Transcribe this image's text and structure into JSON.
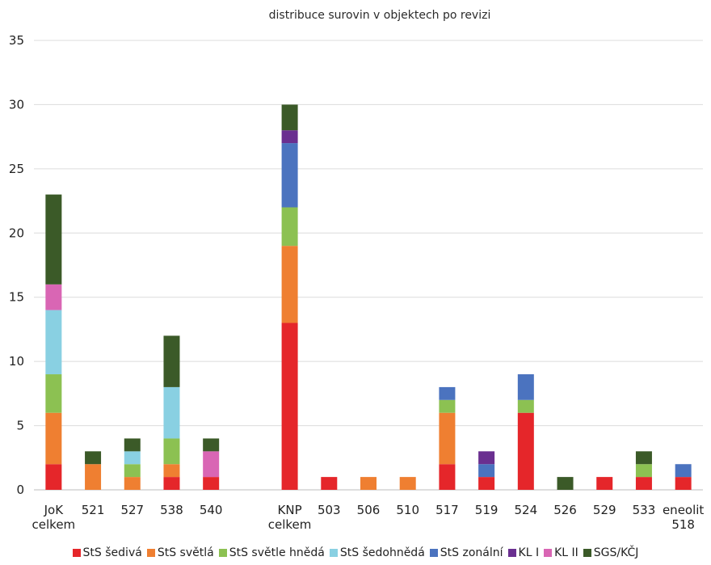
{
  "chart_data": {
    "type": "bar",
    "stacked": true,
    "title": "distribuce surovin v objektech po revizi",
    "xlabel": "",
    "ylabel": "",
    "ylim": [
      0,
      35
    ],
    "yticks": [
      0,
      5,
      10,
      15,
      20,
      25,
      30,
      35
    ],
    "grid": true,
    "legend_position": "bottom",
    "categories": [
      [
        "JoK",
        "celkem"
      ],
      [
        "521"
      ],
      [
        "527"
      ],
      [
        "538"
      ],
      [
        "540"
      ],
      [
        ""
      ],
      [
        "KNP",
        "celkem"
      ],
      [
        "503"
      ],
      [
        "506"
      ],
      [
        "510"
      ],
      [
        "517"
      ],
      [
        "519"
      ],
      [
        "524"
      ],
      [
        "526"
      ],
      [
        "529"
      ],
      [
        "533"
      ],
      [
        "eneolit",
        "518"
      ]
    ],
    "series": [
      {
        "name": "StS šedivá",
        "color": "#e5262a",
        "values": [
          2,
          0,
          0,
          1,
          1,
          0,
          13,
          1,
          0,
          0,
          2,
          1,
          6,
          0,
          1,
          1,
          1
        ]
      },
      {
        "name": "StS světlá",
        "color": "#ef7f31",
        "values": [
          4,
          2,
          1,
          1,
          0,
          0,
          6,
          0,
          1,
          1,
          4,
          0,
          0,
          0,
          0,
          0,
          0
        ]
      },
      {
        "name": "StS světle hnědá",
        "color": "#8cc152",
        "values": [
          3,
          0,
          1,
          2,
          0,
          0,
          3,
          0,
          0,
          0,
          1,
          0,
          1,
          0,
          0,
          1,
          0
        ]
      },
      {
        "name": "StS šedohnědá",
        "color": "#89d0e2",
        "values": [
          5,
          0,
          1,
          4,
          0,
          0,
          0,
          0,
          0,
          0,
          0,
          0,
          0,
          0,
          0,
          0,
          0
        ]
      },
      {
        "name": "StS zonální",
        "color": "#4b73bf",
        "values": [
          0,
          0,
          0,
          0,
          0,
          0,
          5,
          0,
          0,
          0,
          1,
          1,
          2,
          0,
          0,
          0,
          1
        ]
      },
      {
        "name": "KL I",
        "color": "#6a2f90",
        "values": [
          0,
          0,
          0,
          0,
          0,
          0,
          1,
          0,
          0,
          0,
          0,
          1,
          0,
          0,
          0,
          0,
          0
        ]
      },
      {
        "name": "KL II",
        "color": "#d966b4",
        "values": [
          2,
          0,
          0,
          0,
          2,
          0,
          0,
          0,
          0,
          0,
          0,
          0,
          0,
          0,
          0,
          0,
          0
        ]
      },
      {
        "name": "SGS/KČJ",
        "color": "#3b5a28",
        "values": [
          7,
          1,
          1,
          4,
          1,
          0,
          2,
          0,
          0,
          0,
          0,
          0,
          0,
          1,
          0,
          1,
          0
        ]
      }
    ]
  }
}
